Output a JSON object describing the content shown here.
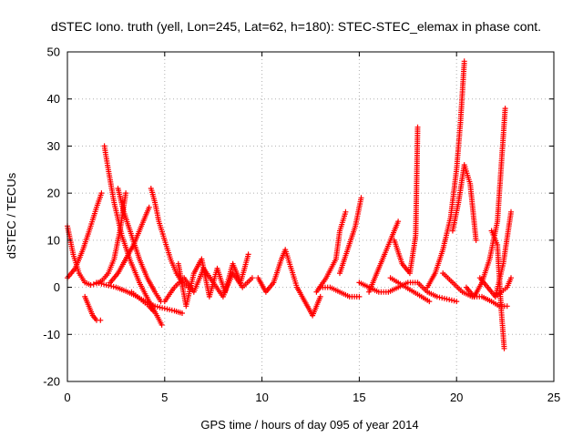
{
  "chart_data": {
    "type": "scatter",
    "title": "dSTEC Iono. truth (yell, Lon=245, Lat=62, h=180): STEC-STEC_elemax in phase cont.",
    "xlabel": "GPS time / hours of day 095 of year 2014",
    "ylabel": "dSTEC  / TECUs",
    "xlim": [
      0,
      25
    ],
    "ylim": [
      -20,
      50
    ],
    "xticks": [
      0,
      5,
      10,
      15,
      20,
      25
    ],
    "yticks": [
      -20,
      -10,
      0,
      10,
      20,
      30,
      40,
      50
    ],
    "grid": true,
    "marker": "+",
    "colors": {
      "series": "#ff0000",
      "grid": "#b0b0b0",
      "axes": "#000000"
    },
    "series": [
      {
        "name": "",
        "arcs": [
          {
            "x": [
              0.0,
              0.3,
              0.6,
              0.9,
              1.2,
              1.5,
              1.8,
              2.1,
              2.4,
              2.7,
              3.0
            ],
            "y": [
              13,
              7,
              3,
              1,
              0.5,
              0.8,
              1.5,
              3,
              6,
              12,
              20
            ]
          },
          {
            "x": [
              0.0,
              0.4,
              0.8,
              1.2,
              1.5,
              1.75
            ],
            "y": [
              2,
              4,
              8,
              13,
              17,
              20
            ]
          },
          {
            "x": [
              0.9,
              1.1,
              1.3,
              1.5,
              1.7
            ],
            "y": [
              -2,
              -4,
              -6,
              -7,
              -7
            ]
          },
          {
            "x": [
              1.9,
              2.1,
              2.4,
              2.8,
              3.2,
              3.7,
              4.2,
              4.6,
              4.85
            ],
            "y": [
              30,
              25,
              18,
              11,
              6,
              1,
              -3,
              -6,
              -8
            ]
          },
          {
            "x": [
              1.5,
              2.0,
              2.5,
              3.0,
              3.5,
              4.0,
              4.5,
              5.0,
              5.5,
              5.9
            ],
            "y": [
              1,
              0.5,
              0,
              -0.8,
              -1.8,
              -3,
              -4,
              -4.5,
              -5,
              -5.5
            ]
          },
          {
            "x": [
              2.6,
              2.9,
              3.3,
              3.7,
              4.1,
              4.5,
              4.8
            ],
            "y": [
              21,
              16,
              11,
              6,
              2,
              -1,
              -3
            ]
          },
          {
            "x": [
              3.3,
              3.6,
              3.9,
              4.2,
              4.4
            ],
            "y": [
              -1,
              -2,
              -3,
              -4,
              -5
            ]
          },
          {
            "x": [
              4.3,
              4.5,
              4.7,
              5.0,
              5.3,
              5.6,
              5.9,
              6.2
            ],
            "y": [
              21,
              18,
              14,
              10,
              6,
              3,
              1,
              0
            ]
          },
          {
            "x": [
              2.2,
              2.6,
              3.0,
              3.4,
              3.8,
              4.2
            ],
            "y": [
              1,
              3,
              6,
              9,
              13,
              17
            ]
          },
          {
            "x": [
              5.0,
              5.5,
              6.0,
              6.5,
              7.0,
              7.5,
              8.0,
              8.5,
              9.0,
              9.5
            ],
            "y": [
              -3,
              0,
              2,
              -1,
              4,
              1,
              -2,
              3,
              0,
              2
            ]
          },
          {
            "x": [
              5.7,
              6.1,
              6.5,
              6.9,
              7.3,
              7.7,
              8.1,
              8.5,
              8.9,
              9.3
            ],
            "y": [
              5,
              -4,
              3,
              6,
              -2,
              4,
              -1,
              5,
              1,
              7
            ]
          },
          {
            "x": [
              9.8,
              10.2,
              10.6,
              11.0,
              11.2,
              11.5,
              11.8,
              12.2,
              12.6,
              13.0
            ],
            "y": [
              2,
              -1,
              1,
              6,
              8,
              4,
              0,
              -3,
              -6,
              -2
            ]
          },
          {
            "x": [
              12.8,
              13.3,
              13.8,
              14.0,
              14.3
            ],
            "y": [
              -1,
              2,
              6,
              12,
              16
            ]
          },
          {
            "x": [
              13.0,
              13.5,
              14.0,
              14.5,
              15.0
            ],
            "y": [
              0,
              0,
              -1,
              -2,
              -2
            ]
          },
          {
            "x": [
              14.0,
              14.4,
              14.8,
              15.1
            ],
            "y": [
              3,
              8,
              13,
              19
            ]
          },
          {
            "x": [
              15.0,
              15.5,
              16.0,
              16.5,
              17.0,
              17.5,
              18.0,
              18.5,
              19.0,
              19.5,
              20.0
            ],
            "y": [
              1,
              0,
              -1,
              -1,
              0,
              1,
              1,
              -1,
              -2,
              -2.5,
              -3
            ]
          },
          {
            "x": [
              15.5,
              15.9,
              16.3,
              16.6,
              16.8,
              17.0
            ],
            "y": [
              -1,
              3,
              7,
              10,
              12,
              14
            ]
          },
          {
            "x": [
              16.8,
              17.2,
              17.6,
              17.9,
              18.0
            ],
            "y": [
              10,
              5,
              3,
              11,
              34
            ]
          },
          {
            "x": [
              16.6,
              17.0,
              17.4,
              17.8,
              18.2,
              18.6
            ],
            "y": [
              2,
              1,
              0,
              -1,
              -2,
              -3
            ]
          },
          {
            "x": [
              18.5,
              18.9,
              19.3,
              19.7,
              20.0,
              20.2,
              20.4
            ],
            "y": [
              0,
              3,
              8,
              15,
              25,
              35,
              48
            ]
          },
          {
            "x": [
              19.3,
              19.8,
              20.3,
              20.8,
              21.3,
              21.8,
              22.2,
              22.6
            ],
            "y": [
              3,
              1,
              -1,
              -2,
              -2,
              -3,
              -4,
              -4
            ]
          },
          {
            "x": [
              19.8,
              20.1,
              20.4,
              20.7,
              21.0
            ],
            "y": [
              12,
              18,
              26,
              22,
              10
            ]
          },
          {
            "x": [
              20.5,
              20.9,
              21.3,
              21.7,
              22.1,
              22.5
            ],
            "y": [
              0,
              -2,
              1,
              6,
              14,
              38
            ]
          },
          {
            "x": [
              21.8,
              22.1,
              22.3,
              22.45
            ],
            "y": [
              12,
              9,
              -5,
              -13
            ]
          },
          {
            "x": [
              21.2,
              21.6,
              22.0,
              22.4,
              22.8
            ],
            "y": [
              2,
              0,
              -2,
              5,
              16
            ]
          },
          {
            "x": [
              22.0,
              22.3,
              22.6,
              22.8
            ],
            "y": [
              -2,
              -1,
              0,
              2
            ]
          }
        ]
      }
    ]
  }
}
